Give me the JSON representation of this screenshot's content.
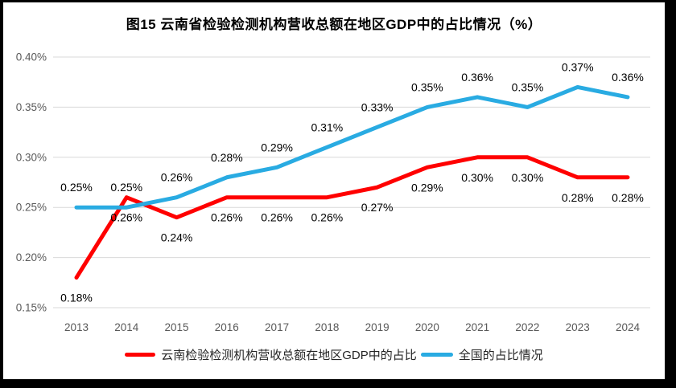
{
  "title": "图15 云南省检验检测机构营收总额在地区GDP中的占比情况（%）",
  "chart_data": {
    "type": "line",
    "title": "图15 云南省检验检测机构营收总额在地区GDP中的占比情况（%）",
    "categories": [
      "2013",
      "2014",
      "2015",
      "2016",
      "2017",
      "2018",
      "2019",
      "2020",
      "2021",
      "2022",
      "2023",
      "2024"
    ],
    "series": [
      {
        "name": "云南检验检测机构营收总额在地区GDP中的占比",
        "color": "#FF0000",
        "values": [
          0.18,
          0.26,
          0.24,
          0.26,
          0.26,
          0.26,
          0.27,
          0.29,
          0.3,
          0.3,
          0.28,
          0.28
        ],
        "labels": [
          "0.18%",
          "0.26%",
          "0.24%",
          "0.26%",
          "0.26%",
          "0.26%",
          "0.27%",
          "0.29%",
          "0.30%",
          "0.30%",
          "0.28%",
          "0.28%"
        ],
        "label_position": "below"
      },
      {
        "name": "全国的占比情况",
        "color": "#29ABE2",
        "values": [
          0.25,
          0.25,
          0.26,
          0.28,
          0.29,
          0.31,
          0.33,
          0.35,
          0.36,
          0.35,
          0.37,
          0.36
        ],
        "labels": [
          "0.25%",
          "0.25%",
          "0.26%",
          "0.28%",
          "0.29%",
          "0.31%",
          "0.33%",
          "0.35%",
          "0.36%",
          "0.35%",
          "0.37%",
          "0.36%"
        ],
        "label_position": "above"
      }
    ],
    "y_axis": {
      "tick_labels": [
        "0.40%",
        "0.35%",
        "0.30%",
        "0.25%",
        "0.20%",
        "0.15%"
      ],
      "tick_values": [
        0.4,
        0.35,
        0.3,
        0.25,
        0.2,
        0.15
      ],
      "min": 0.15,
      "max": 0.4,
      "step": 0.05
    },
    "xlabel": "",
    "ylabel": "",
    "grid": true,
    "legend_position": "bottom",
    "colors": {
      "grid": "#D9D9D9",
      "tick_text": "#595959",
      "data_label_text": "#000000",
      "frame_border": "#000000",
      "background": "#FFFFFF"
    }
  }
}
